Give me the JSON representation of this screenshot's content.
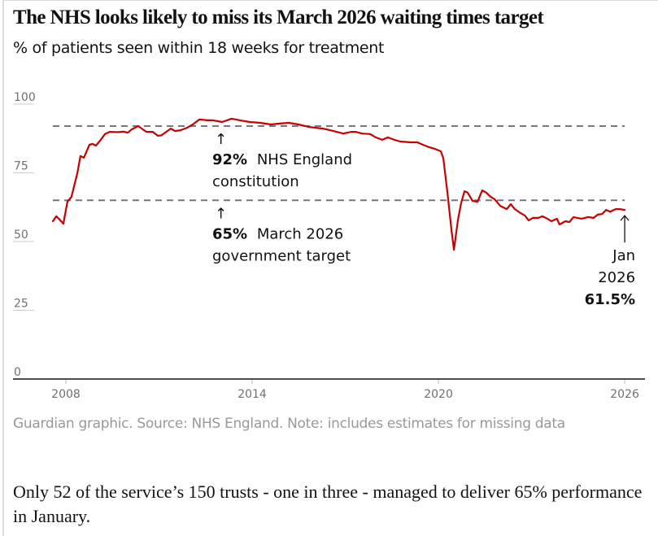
{
  "header": {
    "title": "The NHS looks likely to miss its March 2026 waiting times target",
    "subtitle": "% of patients seen within 18 weeks for treatment"
  },
  "footer": {
    "source": "Guardian graphic. Source: NHS England. Note: includes estimates for missing data",
    "body": "Only 52 of the service’s 150 trusts - one in three - managed to deliver 65% performance in January."
  },
  "colors": {
    "line": "#c70000",
    "reference_lines": "#777777",
    "axis": "#121212",
    "tick_text": "#707070"
  },
  "chart_data": {
    "type": "line",
    "title": "The NHS looks likely to miss its March 2026 waiting times target",
    "subtitle": "% of patients seen within 18 weeks for treatment",
    "xlabel": "",
    "ylabel": "",
    "xlim": [
      2007.4,
      2026.65
    ],
    "ylim": [
      0,
      100
    ],
    "grid": false,
    "x_ticks": [
      2008,
      2014,
      2020,
      2026
    ],
    "x_tick_labels": [
      "2008",
      "2014",
      "2020",
      "2026"
    ],
    "y_ticks": [
      0,
      25,
      50,
      75,
      100
    ],
    "y_tick_labels": [
      "0",
      "25",
      "50",
      "75",
      "100"
    ],
    "series": [
      {
        "name": "% seen within 18 weeks",
        "x": [
          2007.58,
          2007.69,
          2007.76,
          2007.92,
          2008.05,
          2008.18,
          2008.37,
          2008.47,
          2008.58,
          2008.76,
          2008.86,
          2008.97,
          2009.1,
          2009.26,
          2009.41,
          2009.68,
          2009.86,
          2009.99,
          2010.12,
          2010.33,
          2010.59,
          2010.8,
          2010.96,
          2011.07,
          2011.38,
          2011.51,
          2011.69,
          2011.9,
          2012.09,
          2012.3,
          2012.56,
          2012.74,
          2013.03,
          2013.34,
          2013.61,
          2013.92,
          2014.26,
          2014.6,
          2014.86,
          2015.18,
          2015.49,
          2015.83,
          2016.28,
          2016.62,
          2016.93,
          2017.2,
          2017.33,
          2017.54,
          2017.8,
          2017.98,
          2018.19,
          2018.37,
          2018.58,
          2018.77,
          2019.11,
          2019.32,
          2019.5,
          2019.71,
          2019.89,
          2020.08,
          2020.16,
          2020.29,
          2020.42,
          2020.5,
          2020.63,
          2020.73,
          2020.84,
          2020.94,
          2021.1,
          2021.26,
          2021.41,
          2021.54,
          2021.68,
          2021.81,
          2021.99,
          2022.2,
          2022.33,
          2022.46,
          2022.64,
          2022.78,
          2022.91,
          2023.04,
          2023.22,
          2023.35,
          2023.51,
          2023.64,
          2023.82,
          2023.9,
          2024.09,
          2024.22,
          2024.35,
          2024.61,
          2024.82,
          2025.0,
          2025.13,
          2025.27,
          2025.4,
          2025.53,
          2025.71,
          2025.84,
          2026.0
        ],
        "values": [
          57.4,
          59.2,
          58.5,
          56.5,
          64.5,
          66.3,
          74.9,
          81.1,
          80.5,
          85.2,
          85.5,
          84.9,
          86.7,
          89.1,
          89.9,
          89.8,
          90.0,
          89.6,
          90.8,
          92.0,
          89.9,
          89.9,
          88.5,
          88.6,
          91.1,
          90.2,
          90.5,
          91.4,
          92.6,
          94.4,
          94.1,
          94.1,
          93.5,
          94.7,
          94.1,
          93.5,
          93.2,
          92.6,
          92.9,
          93.2,
          92.6,
          91.7,
          91.1,
          90.2,
          89.3,
          89.9,
          89.9,
          89.3,
          89.1,
          87.9,
          87.0,
          87.9,
          87.0,
          86.4,
          86.1,
          86.1,
          85.2,
          84.3,
          83.7,
          82.8,
          80.2,
          67.8,
          54.1,
          47.0,
          58.0,
          63.9,
          68.3,
          67.8,
          64.8,
          64.5,
          68.6,
          67.8,
          66.3,
          65.4,
          63.0,
          61.8,
          63.6,
          61.8,
          60.4,
          59.5,
          57.7,
          58.6,
          58.6,
          59.2,
          58.3,
          57.4,
          58.3,
          56.2,
          57.4,
          57.1,
          58.9,
          58.3,
          58.9,
          58.6,
          59.8,
          60.0,
          61.5,
          60.9,
          61.8,
          61.8,
          61.5
        ]
      }
    ],
    "reference_lines": [
      {
        "value": 92,
        "label_bold": "92%",
        "label_rest": "NHS England",
        "label_line2": "constitution"
      },
      {
        "value": 65,
        "label_bold": "65%",
        "label_rest": "March 2026",
        "label_line2": "government target"
      }
    ],
    "annotations": [
      {
        "label": "Jan",
        "line2": "2026",
        "value_label": "61.5%",
        "x": 2026.0,
        "value": 61.5
      }
    ]
  }
}
